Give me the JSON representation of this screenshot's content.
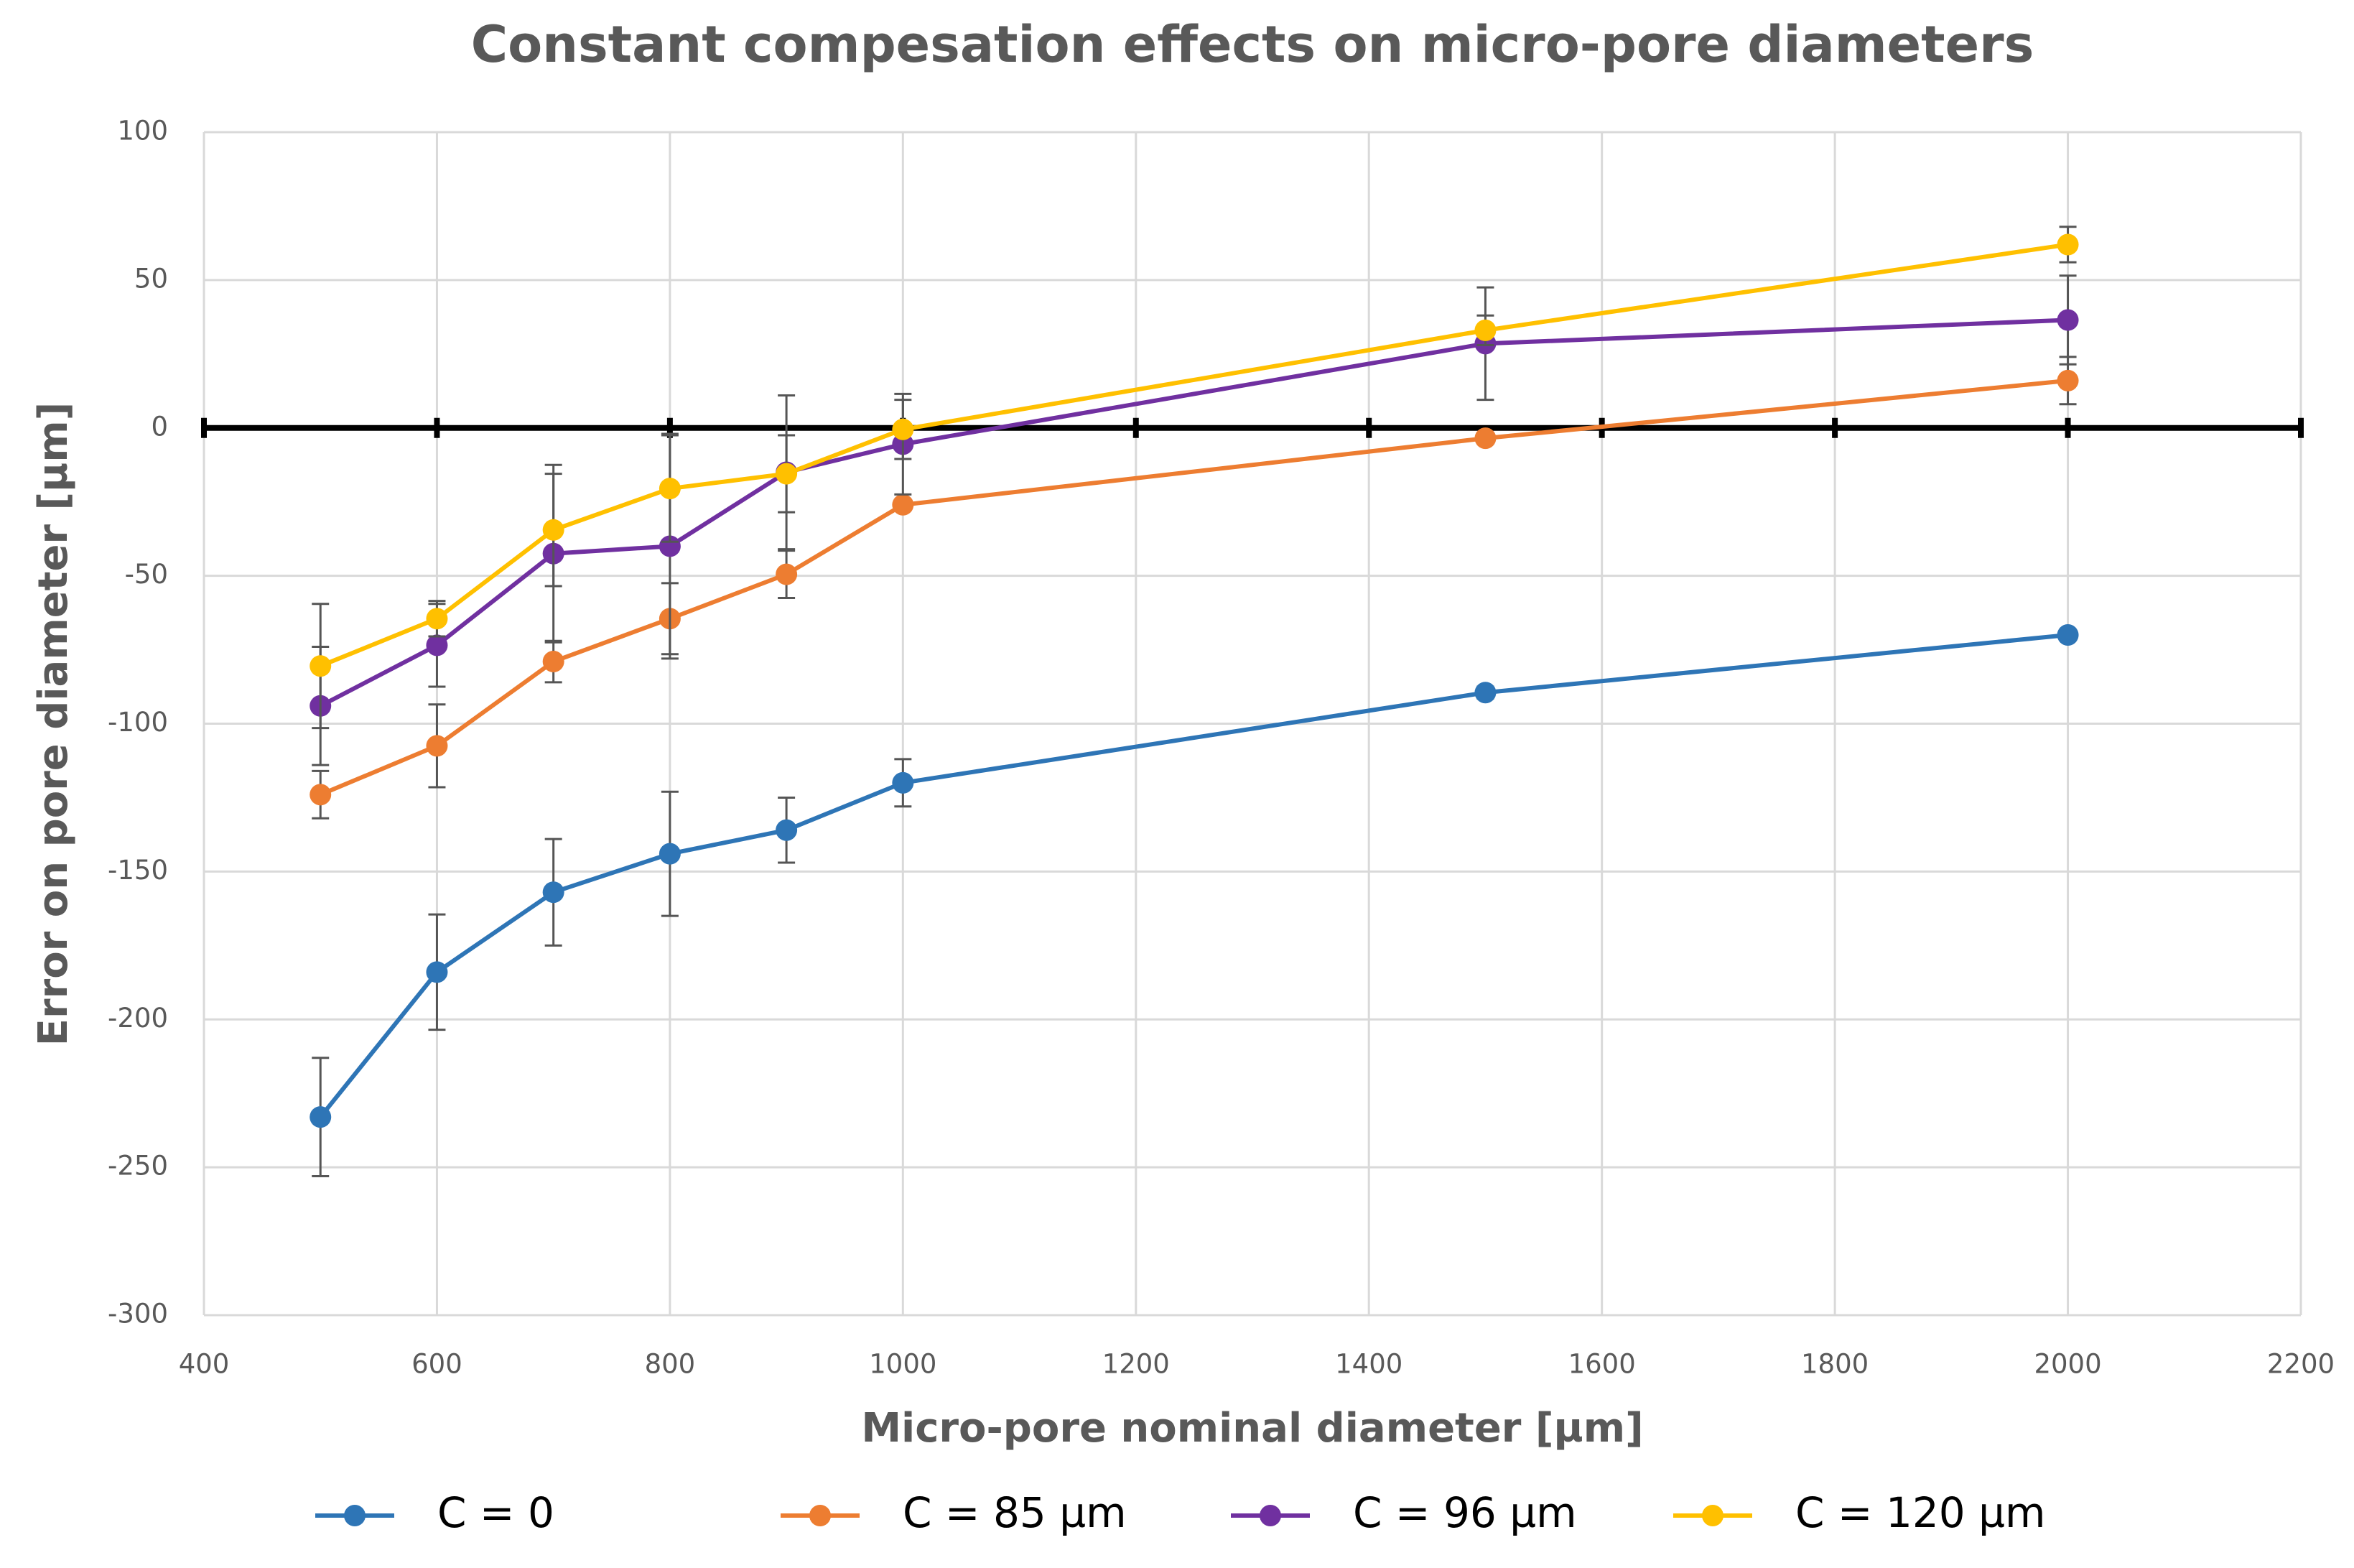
{
  "chart_data": {
    "type": "line",
    "title": "Constant compesation effects on micro-pore diameters",
    "x_label": "Micro-pore nominal diameter [µm]",
    "y_label": "Error on pore diameter [µm]",
    "x": [
      500,
      600,
      700,
      800,
      900,
      1000,
      1500,
      2000
    ],
    "series": [
      {
        "name": "C = 0",
        "color": "#2e75b6",
        "values": [
          -233,
          -184,
          -157,
          -144,
          -136,
          -120,
          -89.5,
          -70
        ],
        "errors": [
          20,
          19.5,
          18,
          21,
          11,
          8,
          2,
          1
        ]
      },
      {
        "name": "C = 85 µm",
        "color": "#ed7d31",
        "values": [
          -124,
          -107.5,
          -79,
          -64.5,
          -49.5,
          -26,
          -3.5,
          16
        ],
        "errors": [
          8,
          14,
          7,
          12,
          8,
          0,
          0,
          8
        ]
      },
      {
        "name": "C = 96 µm",
        "color": "#7030a0",
        "values": [
          -94,
          -73.5,
          -42.5,
          -40,
          -15,
          -5.5,
          28.5,
          36.5
        ],
        "errors": [
          20,
          14,
          30,
          38,
          26,
          17,
          19,
          15
        ]
      },
      {
        "name": "C = 120 µm",
        "color": "#ffc000",
        "values": [
          -80.5,
          -64.5,
          -34.5,
          -20.5,
          -15.5,
          -0.5,
          33,
          62
        ],
        "errors": [
          21,
          6,
          19,
          18,
          13,
          10,
          5,
          6
        ]
      }
    ],
    "xlim": [
      400,
      2200
    ],
    "xticks": [
      400,
      600,
      800,
      1000,
      1200,
      1400,
      1600,
      1800,
      2000,
      2200
    ],
    "ylim": [
      -300,
      100
    ],
    "yticks": [
      -300,
      -250,
      -200,
      -150,
      -100,
      -50,
      0,
      50,
      100
    ],
    "grid": true,
    "zero_line": true,
    "legend": "bottom"
  }
}
